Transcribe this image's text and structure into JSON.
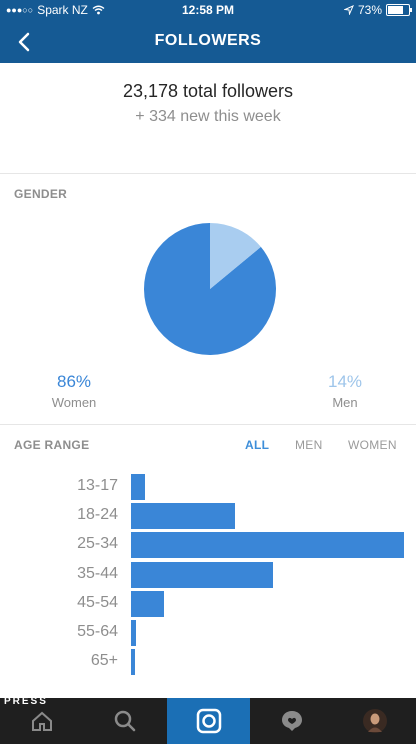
{
  "status": {
    "carrier": "Spark NZ",
    "time": "12:58 PM",
    "battery": "73%",
    "battery_level": 0.73
  },
  "header": {
    "title": "FOLLOWERS"
  },
  "totals": {
    "total": "23,178 total followers",
    "new_this_week": "+ 334 new this week"
  },
  "gender": {
    "label": "GENDER",
    "women_pct": "86%",
    "women_label": "Women",
    "men_pct": "14%",
    "men_label": "Men",
    "colors": {
      "women": "#3a86d7",
      "men": "#a9cdf0"
    }
  },
  "age": {
    "label": "AGE RANGE",
    "tabs": [
      {
        "label": "ALL",
        "active": true
      },
      {
        "label": "MEN",
        "active": false
      },
      {
        "label": "WOMEN",
        "active": false
      }
    ]
  },
  "chart_data": [
    {
      "type": "pie",
      "categories": [
        "Women",
        "Men"
      ],
      "values": [
        86,
        14
      ],
      "title": "GENDER"
    },
    {
      "type": "bar",
      "orientation": "horizontal",
      "categories": [
        "13-17",
        "18-24",
        "25-34",
        "35-44",
        "45-54",
        "55-64",
        "65+"
      ],
      "values": [
        0.05,
        0.38,
        1.0,
        0.52,
        0.12,
        0.02,
        0.015
      ],
      "title": "AGE RANGE"
    }
  ],
  "bottom_nav": {
    "items": [
      "home-icon",
      "search-icon",
      "camera-icon",
      "activity-icon",
      "profile-icon"
    ],
    "active": 2,
    "watermark": "PRESS"
  },
  "colors": {
    "header": "#155a94",
    "accent": "#3a86d7",
    "active_tab": "#1b6fb5"
  }
}
